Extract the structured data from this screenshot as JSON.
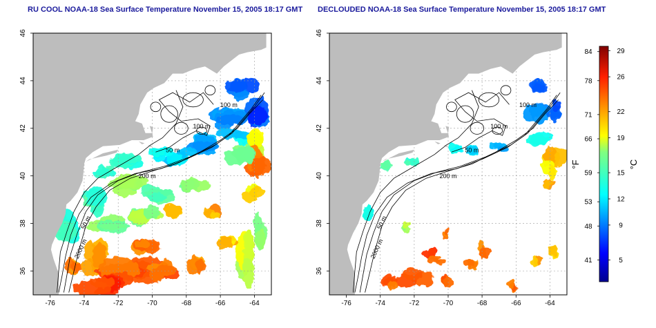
{
  "panels": [
    {
      "title": "RU COOL NOAA-18 Sea Surface Temperature November 15, 2005 18:17 GMT",
      "mode": "cool"
    },
    {
      "title": "DECLOUDED NOAA-18 Sea Surface Temperature November 15, 2005 18:17 GMT",
      "mode": "declouded"
    }
  ],
  "colors": {
    "land": "#bdbdbd",
    "title": "#1a1a9c",
    "grid": "#9a9a9a"
  },
  "chart_data": [
    {
      "type": "heatmap",
      "title": "RU COOL NOAA-18 Sea Surface Temperature November 15, 2005 18:17 GMT",
      "xlim": [
        -77,
        -63
      ],
      "ylim": [
        35,
        46
      ],
      "x_ticks": [
        -76,
        -74,
        -72,
        -70,
        -68,
        -66,
        -64
      ],
      "y_ticks": [
        36,
        38,
        40,
        42,
        44,
        46
      ],
      "grid": true,
      "contour_labels": [
        {
          "text": "100 m",
          "lon": -65.5,
          "lat": 42.9
        },
        {
          "text": "100 m",
          "lon": -67.1,
          "lat": 42.0
        },
        {
          "text": "50 m",
          "lon": -68.8,
          "lat": 41.0
        },
        {
          "text": "200 m",
          "lon": -70.3,
          "lat": 39.9
        },
        {
          "text": "50 m",
          "lon": -73.8,
          "lat": 38.0
        },
        {
          "text": "2000 m",
          "lon": -74.1,
          "lat": 36.9
        }
      ]
    },
    {
      "type": "heatmap",
      "title": "DECLOUDED NOAA-18 Sea Surface Temperature November 15, 2005 18:17 GMT",
      "xlim": [
        -77,
        -63
      ],
      "ylim": [
        35,
        46
      ],
      "x_ticks": [
        -76,
        -74,
        -72,
        -70,
        -68,
        -66,
        -64
      ],
      "y_ticks": [
        36,
        38,
        40,
        42,
        44,
        46
      ],
      "grid": true,
      "contour_labels": [
        {
          "text": "100 m",
          "lon": -65.3,
          "lat": 42.9
        },
        {
          "text": "100 m",
          "lon": -67.0,
          "lat": 42.0
        },
        {
          "text": "50 m",
          "lon": -68.6,
          "lat": 41.0
        },
        {
          "text": "200 m",
          "lon": -70.0,
          "lat": 39.9
        },
        {
          "text": "50 m",
          "lon": -73.8,
          "lat": 38.0
        },
        {
          "text": "2000 m",
          "lon": -74.1,
          "lat": 36.9
        }
      ]
    }
  ],
  "colorbar": {
    "fahrenheit_label": "°F",
    "celsius_label": "°C",
    "fahrenheit_ticks": [
      84,
      78,
      71,
      66,
      59,
      53,
      48,
      41
    ],
    "celsius_ticks": [
      29,
      26,
      22,
      19,
      15,
      12,
      9,
      5
    ],
    "range_c": [
      2.5,
      29.5
    ]
  }
}
